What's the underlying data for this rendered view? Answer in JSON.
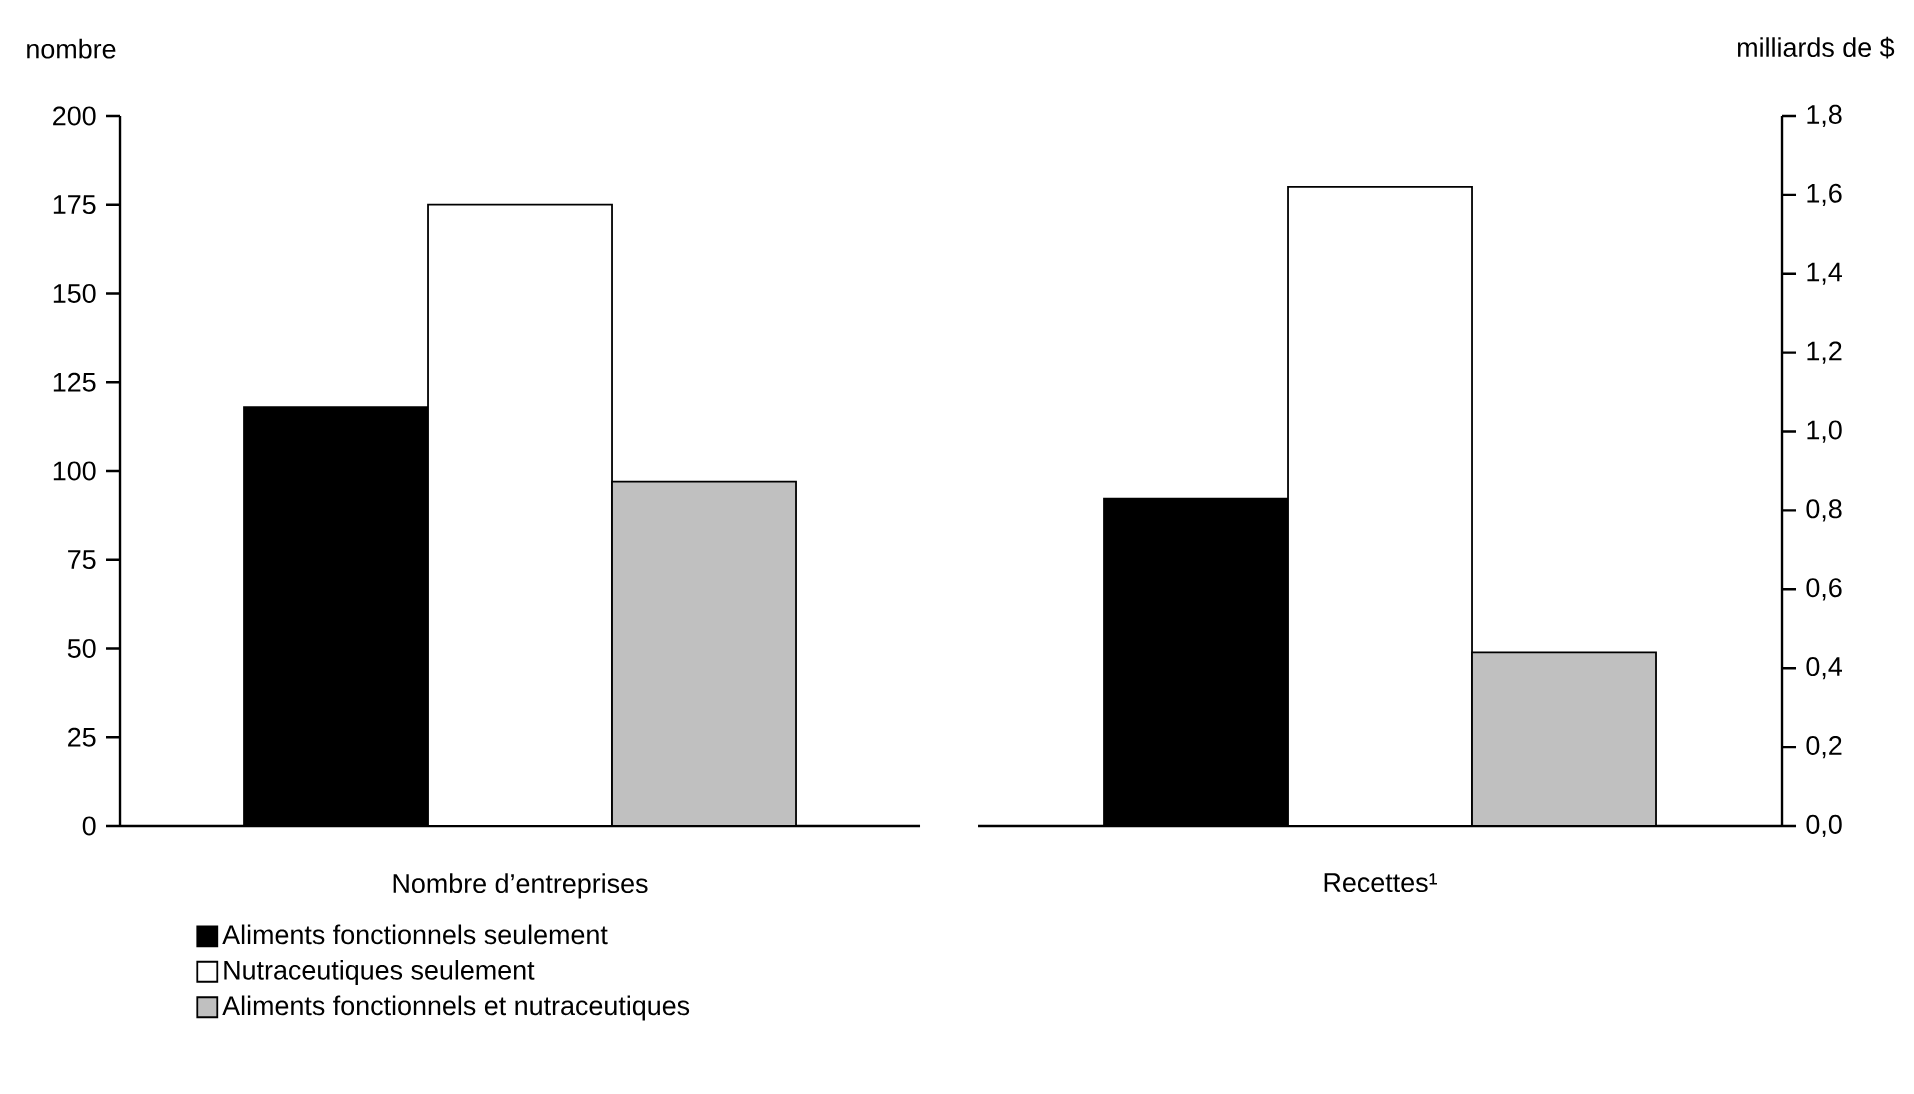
{
  "chart_data": [
    {
      "type": "bar",
      "ylabel": "nombre",
      "categories": [
        "Nombre d’entreprises"
      ],
      "ylim": [
        0,
        200
      ],
      "yticks": [
        0,
        25,
        50,
        75,
        100,
        125,
        150,
        175,
        200
      ],
      "legend": "bottom",
      "series": [
        {
          "name": "Aliments fonctionnels seulement",
          "color": "#000000",
          "values": [
            118
          ]
        },
        {
          "name": "Nutraceutiques seulement",
          "color": "#ffffff",
          "values": [
            175
          ]
        },
        {
          "name": "Aliments fonctionnels et nutraceutiques",
          "color": "#c0c0c0",
          "values": [
            97
          ]
        }
      ]
    },
    {
      "type": "bar",
      "ylabel": "milliards de $",
      "categories": [
        "Recettes¹"
      ],
      "ylim": [
        0,
        1.8
      ],
      "yticks": [
        {
          "value": 0,
          "label": "0,0"
        },
        {
          "value": 0.2,
          "label": "0,2"
        },
        {
          "value": 0.4,
          "label": "0,4"
        },
        {
          "value": 0.6,
          "label": "0,6"
        },
        {
          "value": 0.8,
          "label": "0,8"
        },
        {
          "value": 1.0,
          "label": "1,0"
        },
        {
          "value": 1.2,
          "label": "1,2"
        },
        {
          "value": 1.4,
          "label": "1,4"
        },
        {
          "value": 1.6,
          "label": "1,6"
        },
        {
          "value": 1.8,
          "label": "1,8"
        }
      ],
      "series": [
        {
          "color": "#000000",
          "values": [
            0.83
          ]
        },
        {
          "color": "#ffffff",
          "values": [
            1.62
          ]
        },
        {
          "color": "#c0c0c0",
          "values": [
            0.44
          ]
        }
      ]
    }
  ]
}
